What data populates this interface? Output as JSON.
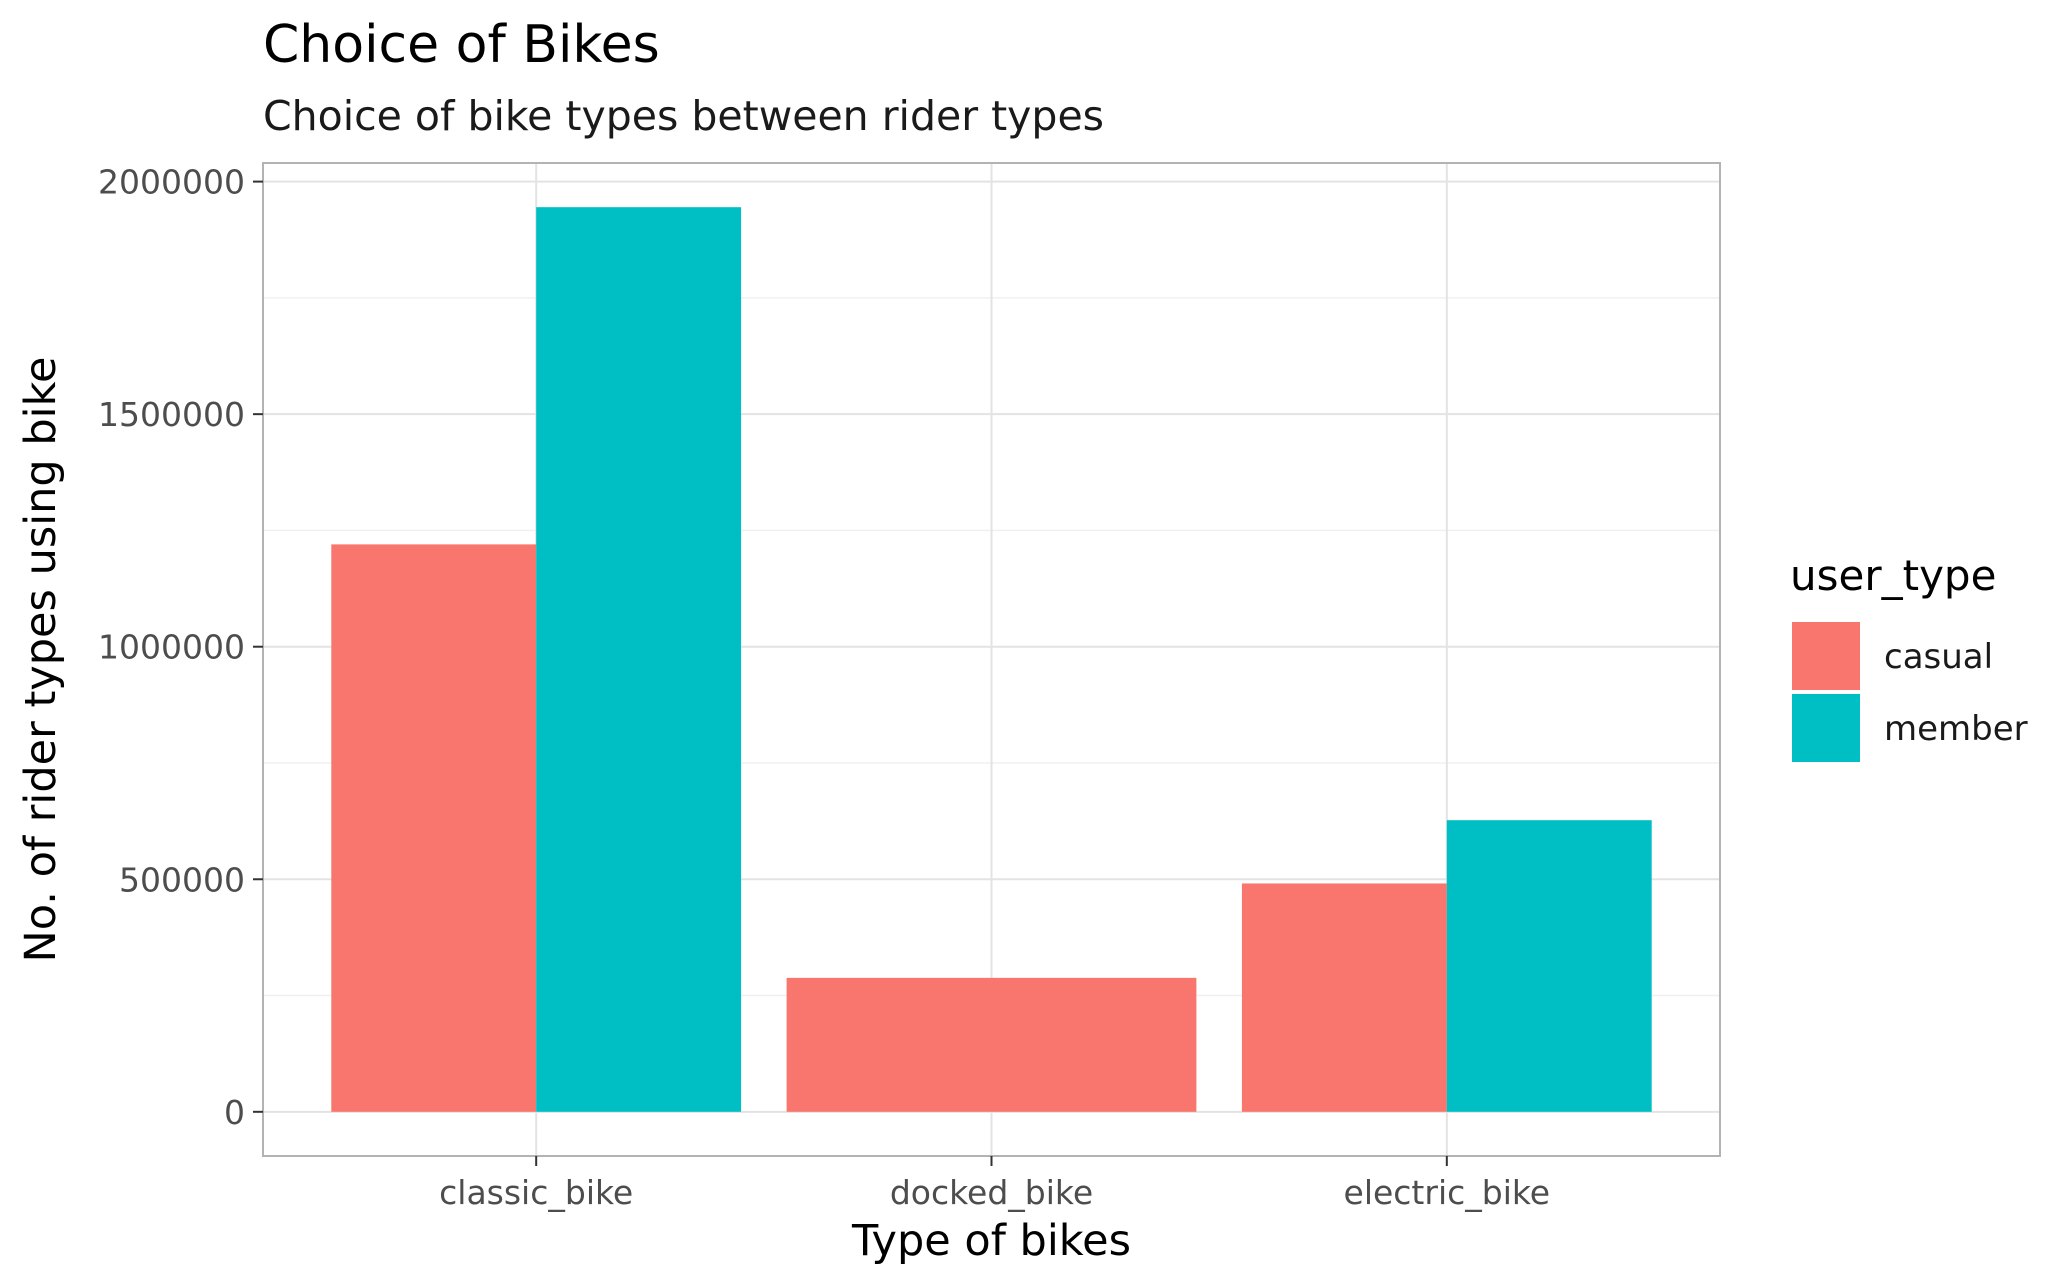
{
  "chart_data": {
    "type": "bar",
    "title": "Choice of Bikes",
    "subtitle": "Choice of bike types between rider types",
    "xlabel": "Type of bikes",
    "ylabel": "No. of rider types using bike",
    "categories": [
      "classic_bike",
      "docked_bike",
      "electric_bike"
    ],
    "series": [
      {
        "name": "casual",
        "color": "#F8766D",
        "values": [
          1220000,
          288000,
          491000
        ]
      },
      {
        "name": "member",
        "color": "#00BFC4",
        "values": [
          1945000,
          null,
          627000
        ]
      }
    ],
    "ylim": [
      -95000,
      2040000
    ],
    "yticks": [
      0,
      500000,
      1000000,
      1500000,
      2000000
    ],
    "ytick_labels": [
      "0",
      "500000",
      "1000000",
      "1500000",
      "2000000"
    ],
    "legend": {
      "title": "user_type",
      "position": "right"
    },
    "grid": true,
    "theme": "light"
  }
}
